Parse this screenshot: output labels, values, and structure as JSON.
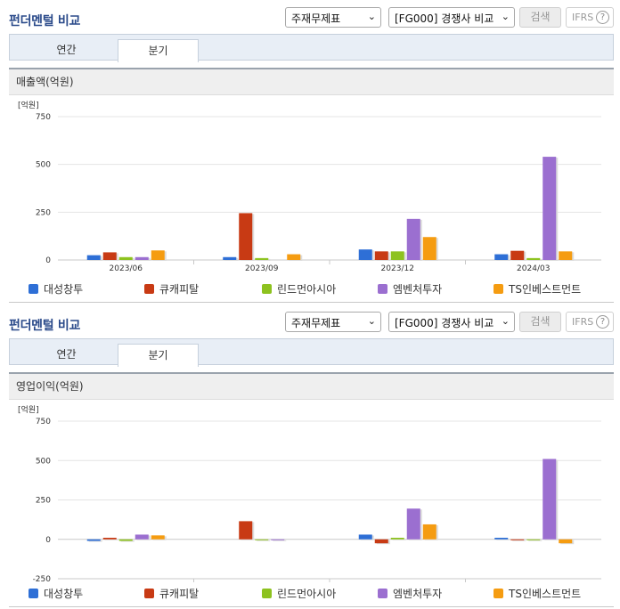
{
  "common": {
    "title": "펀더멘털 비교",
    "select_a": "주재무제표",
    "select_b": "[FG000] 경쟁사 비교",
    "search_label": "검색",
    "ifrs_label": "IFRS",
    "ifrs_help": "?",
    "tabs": [
      "연간",
      "분기"
    ],
    "active_tab": "분기",
    "unit": "[억원]"
  },
  "colors": {
    "대성창투": "#2e6fd6",
    "큐캐피탈": "#c83a14",
    "린드먼아시아": "#8dc21f",
    "엠벤처투자": "#9b6fd0",
    "TS인베스트먼트": "#f59c11"
  },
  "chart_data": [
    {
      "type": "bar",
      "title": "매출액(억원)",
      "unit": "[억원]",
      "categories": [
        "2023/06",
        "2023/09",
        "2023/12",
        "2024/03"
      ],
      "ylim": [
        0,
        750
      ],
      "yticks": [
        0,
        250,
        500,
        750
      ],
      "grid": true,
      "legend_position": "bottom",
      "series": [
        {
          "name": "대성창투",
          "values": [
            25,
            15,
            55,
            30
          ]
        },
        {
          "name": "큐캐피탈",
          "values": [
            40,
            245,
            45,
            48
          ]
        },
        {
          "name": "린드먼아시아",
          "values": [
            15,
            10,
            45,
            10
          ]
        },
        {
          "name": "엠벤처투자",
          "values": [
            15,
            0,
            215,
            540
          ]
        },
        {
          "name": "TS인베스트먼트",
          "values": [
            50,
            30,
            120,
            45
          ]
        }
      ]
    },
    {
      "type": "bar",
      "title": "영업이익(억원)",
      "unit": "[억원]",
      "categories": [
        "2023/06",
        "2023/09",
        "2023/12",
        "2024/03"
      ],
      "ylim": [
        -250,
        750
      ],
      "yticks": [
        -250,
        0,
        250,
        500,
        750
      ],
      "grid": true,
      "legend_position": "bottom",
      "series": [
        {
          "name": "대성창투",
          "values": [
            -10,
            0,
            30,
            10
          ]
        },
        {
          "name": "큐캐피탈",
          "values": [
            10,
            115,
            -25,
            -5
          ]
        },
        {
          "name": "린드먼아시아",
          "values": [
            -10,
            -5,
            10,
            -5
          ]
        },
        {
          "name": "엠벤처투자",
          "values": [
            30,
            -5,
            195,
            510
          ]
        },
        {
          "name": "TS인베스트먼트",
          "values": [
            25,
            0,
            95,
            -25
          ]
        }
      ]
    }
  ]
}
